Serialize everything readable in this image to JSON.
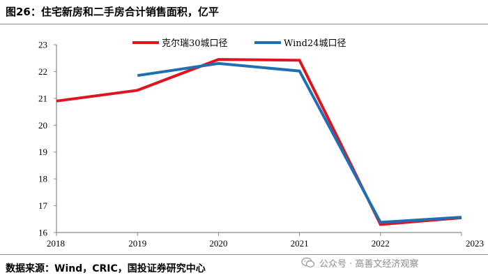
{
  "header": {
    "title": "图26：住宅新房和二手房合计销售面积，亿平"
  },
  "footer": {
    "source": "数据来源：Wind，CRIC，国投证券研究中心",
    "watermark": "公众号 · 高善文经济观察"
  },
  "colors": {
    "series1": "#e0141e",
    "series2": "#1f6fb4",
    "axis": "#8a8a8a"
  },
  "chart_data": {
    "type": "line",
    "title": "",
    "xlabel": "",
    "ylabel": "",
    "categories": [
      "2018",
      "2019",
      "2020",
      "2021",
      "2022",
      "2023"
    ],
    "ylim": [
      16,
      23
    ],
    "yticks": [
      16,
      17,
      18,
      19,
      20,
      21,
      22,
      23
    ],
    "legend_position": "top-center",
    "grid": false,
    "series": [
      {
        "name": "克尔瑞30城口径",
        "color": "#e0141e",
        "values": [
          20.9,
          21.3,
          22.45,
          22.42,
          16.3,
          16.55
        ]
      },
      {
        "name": "Wind24城口径",
        "color": "#1f6fb4",
        "values": [
          null,
          21.85,
          22.3,
          22.02,
          16.38,
          16.57
        ]
      }
    ]
  }
}
